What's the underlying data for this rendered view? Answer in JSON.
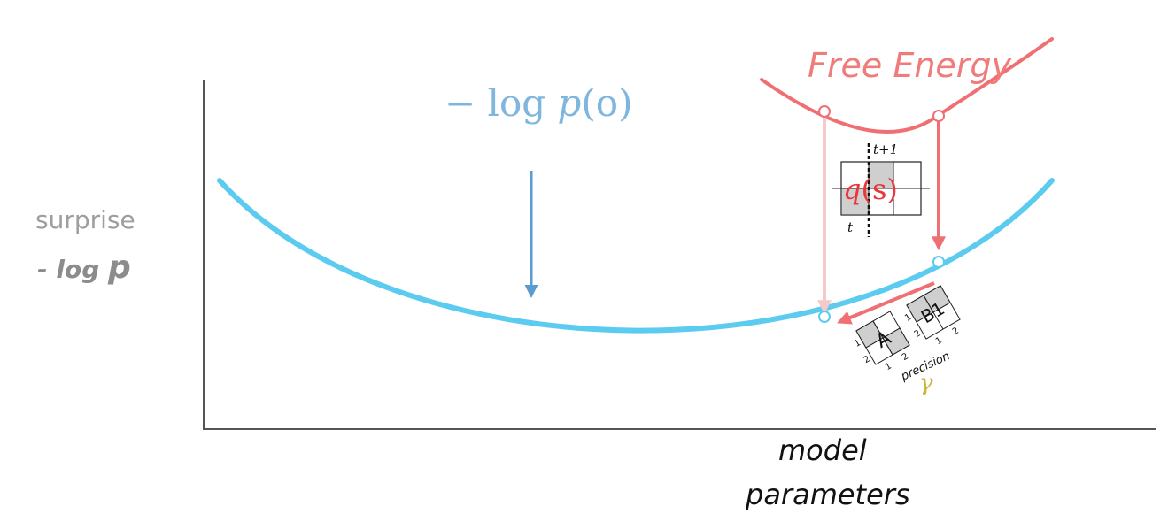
{
  "y_axis": {
    "label_line1": "surprise",
    "label_prefix": "- log ",
    "label_var": "p"
  },
  "x_axis": {
    "label_line1": "model",
    "label_line2": "parameters"
  },
  "curves": {
    "surprise_expr_prefix": "− log ",
    "surprise_expr_func": "p",
    "surprise_expr_arg": "(o)",
    "free_energy_label": "Free Energy"
  },
  "state_matrix": {
    "func": "q",
    "arg": "(s)",
    "next_label": "t+1",
    "current_label": "t"
  },
  "matrix_A": {
    "label": "A",
    "row_labels": [
      "1",
      "2"
    ],
    "col_labels": [
      "1",
      "2"
    ]
  },
  "matrix_B": {
    "label": "B1",
    "row_labels": [
      "1",
      "2"
    ],
    "col_labels": [
      "1",
      "2"
    ]
  },
  "precision": {
    "label": "precision",
    "symbol": "γ"
  },
  "colors": {
    "surprise_curve": "#5ccbf0",
    "surprise_arrow": "#5b9bd0",
    "free_energy": "#ef6f72",
    "faded_arrow": "#f6c8c8",
    "matrix_fill": "#cfcfcf",
    "axis": "#555555",
    "precision_symbol": "#c9b535"
  }
}
